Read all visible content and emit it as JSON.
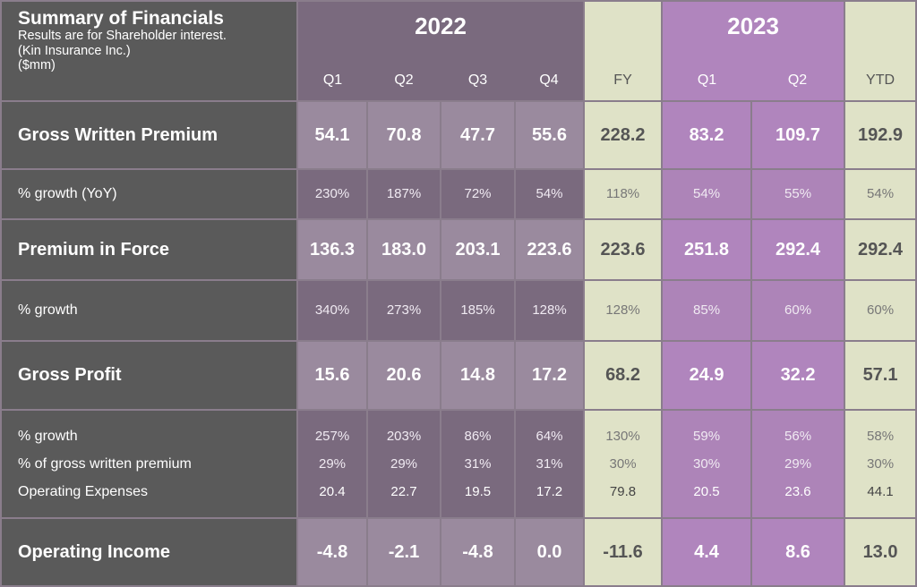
{
  "header": {
    "title": "Summary of Financials",
    "subtitle_line1": "Results are for Shareholder interest.",
    "subtitle_line2": "(Kin Insurance Inc.)",
    "subtitle_line3": "($mm)",
    "year_2022": "2022",
    "year_2023": "2023",
    "fy_label": "FY",
    "ytd_label": "YTD",
    "q1": "Q1",
    "q2": "Q2",
    "q3": "Q3",
    "q4": "Q4"
  },
  "rows": {
    "gwp": {
      "label": "Gross Written Premium",
      "values": [
        "54.1",
        "70.8",
        "47.7",
        "55.6",
        "228.2",
        "83.2",
        "109.7",
        "192.9"
      ]
    },
    "gwp_growth": {
      "label": "% growth (YoY)",
      "values": [
        "230%",
        "187%",
        "72%",
        "54%",
        "118%",
        "54%",
        "55%",
        "54%"
      ]
    },
    "pif": {
      "label": "Premium in Force",
      "values": [
        "136.3",
        "183.0",
        "203.1",
        "223.6",
        "223.6",
        "251.8",
        "292.4",
        "292.4"
      ]
    },
    "pif_growth": {
      "label": "% growth",
      "values": [
        "340%",
        "273%",
        "185%",
        "128%",
        "128%",
        "85%",
        "60%",
        "60%"
      ]
    },
    "gp": {
      "label": "Gross Profit",
      "values": [
        "15.6",
        "20.6",
        "14.8",
        "17.2",
        "68.2",
        "24.9",
        "32.2",
        "57.1"
      ]
    },
    "gp_growth": {
      "label": "% growth",
      "values": [
        "257%",
        "203%",
        "86%",
        "64%",
        "130%",
        "59%",
        "56%",
        "58%"
      ]
    },
    "gp_pct_gwp": {
      "label": "% of gross written premium",
      "values": [
        "29%",
        "29%",
        "31%",
        "31%",
        "30%",
        "30%",
        "29%",
        "30%"
      ]
    },
    "opex": {
      "label": "Operating Expenses",
      "values": [
        "20.4",
        "22.7",
        "19.5",
        "17.2",
        "79.8",
        "20.5",
        "23.6",
        "44.1"
      ]
    },
    "oi": {
      "label": "Operating Income",
      "values": [
        "-4.8",
        "-2.1",
        "-4.8",
        "0.0",
        "-11.6",
        "4.4",
        "8.6",
        "13.0"
      ]
    }
  },
  "colors": {
    "label_column": "#5a5a5a",
    "q_2022_dark": "#7a6a7e",
    "q_2022_light": "#9a8a9e",
    "fy_ytd": "#dfe2c7",
    "q_2023": "#b085bd"
  }
}
